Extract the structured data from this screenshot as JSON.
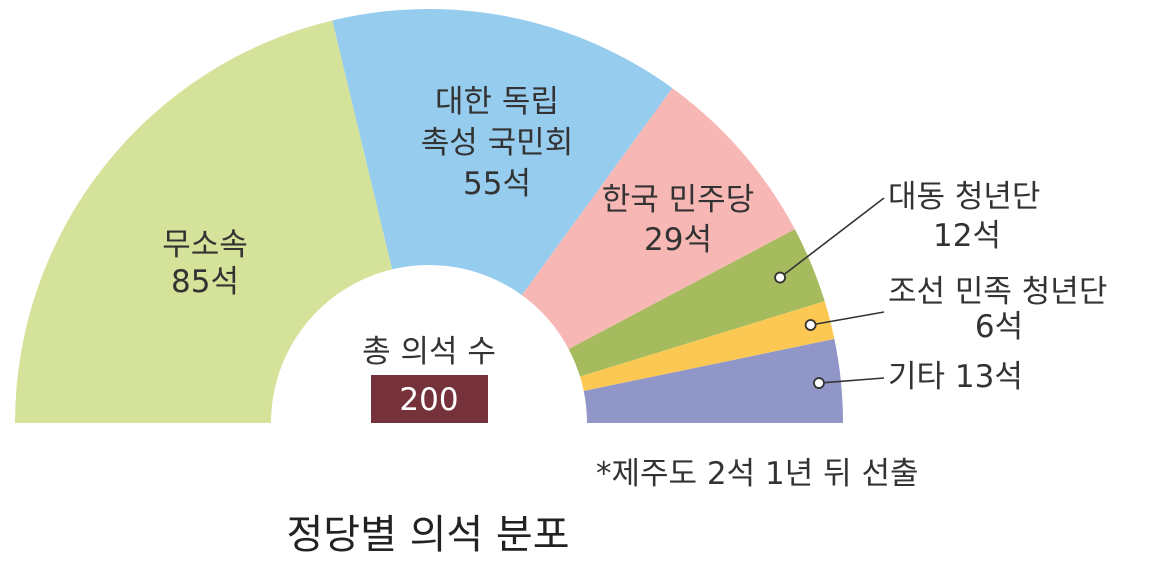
{
  "chart_data": {
    "type": "pie",
    "variant": "semicircle-donut",
    "title": "정당별 의석 분포",
    "total_caption": "총 의석 수",
    "total_value": "200",
    "footnote": "*제주도 2석 1년 뒤 선출",
    "slices": [
      {
        "name": "무소속",
        "value": 85,
        "label": "85석",
        "color": "#d5e29a"
      },
      {
        "name": "대한 독립\n촉성 국민회",
        "value": 55,
        "label": "55석",
        "color": "#96ccee"
      },
      {
        "name": "한국 민주당",
        "value": 29,
        "label": "29석",
        "color": "#f7b8b5"
      },
      {
        "name": "대동 청년단",
        "value": 12,
        "label": "12석",
        "color": "#a6bb5e"
      },
      {
        "name": "조선 민족 청년단",
        "value": 6,
        "label": "6석",
        "color": "#fbc953"
      },
      {
        "name": "기타",
        "value": 13,
        "label": "13석",
        "color": "#9096c8"
      }
    ],
    "total_box_color": "#76323a"
  }
}
